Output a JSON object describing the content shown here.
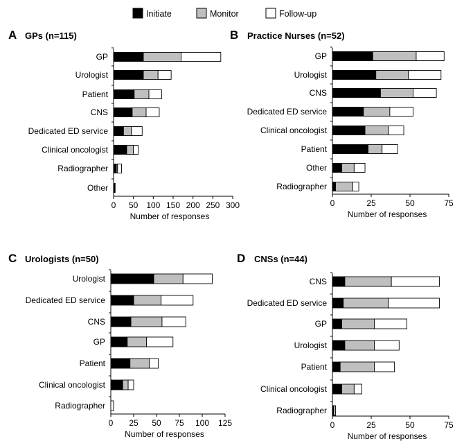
{
  "legend": [
    {
      "name": "Initiate",
      "color": "#000000"
    },
    {
      "name": "Monitor",
      "color": "#bfbfbf"
    },
    {
      "name": "Follow-up",
      "color": "#ffffff"
    }
  ],
  "chart_data": [
    {
      "type": "bar",
      "orientation": "horizontal",
      "stacked": true,
      "panel": "A",
      "title": "GPs (n=115)",
      "xlabel": "Number of responses",
      "xlim": [
        0,
        300
      ],
      "ticks": [
        0,
        50,
        100,
        150,
        200,
        250,
        300
      ],
      "categories": [
        "GP",
        "Urologist",
        "Patient",
        "CNS",
        "Dedicated ED service",
        "Clinical oncologist",
        "Radiographer",
        "Other"
      ],
      "series": [
        {
          "name": "Initiate",
          "values": [
            75,
            75,
            52,
            47,
            25,
            33,
            7,
            2
          ]
        },
        {
          "name": "Monitor",
          "values": [
            95,
            37,
            37,
            35,
            20,
            17,
            3,
            1
          ]
        },
        {
          "name": "Follow-up",
          "values": [
            100,
            33,
            32,
            33,
            27,
            12,
            10,
            1
          ]
        }
      ]
    },
    {
      "type": "bar",
      "orientation": "horizontal",
      "stacked": true,
      "panel": "B",
      "title": "Practice Nurses (n=52)",
      "xlabel": "Number of responses",
      "xlim": [
        0,
        75
      ],
      "ticks": [
        0,
        25,
        50,
        75
      ],
      "categories": [
        "GP",
        "Urologist",
        "CNS",
        "Dedicated ED service",
        "Clinical oncologist",
        "Patient",
        "Other",
        "Radiographer"
      ],
      "series": [
        {
          "name": "Initiate",
          "values": [
            26,
            28,
            31,
            20,
            21,
            23,
            6,
            2
          ]
        },
        {
          "name": "Monitor",
          "values": [
            28,
            21,
            21,
            17,
            15,
            9,
            8,
            11
          ]
        },
        {
          "name": "Follow-up",
          "values": [
            18,
            21,
            15,
            15,
            10,
            10,
            7,
            4
          ]
        }
      ]
    },
    {
      "type": "bar",
      "orientation": "horizontal",
      "stacked": true,
      "panel": "C",
      "title": "Urologists  (n=50)",
      "xlabel": "Number of responses",
      "xlim": [
        0,
        125
      ],
      "ticks": [
        0,
        25,
        50,
        75,
        100,
        125
      ],
      "categories": [
        "Urologist",
        "Dedicated ED service",
        "CNS",
        "GP",
        "Patient",
        "Clinical oncologist",
        "Radiographer"
      ],
      "series": [
        {
          "name": "Initiate",
          "values": [
            47,
            25,
            22,
            18,
            21,
            13,
            0
          ]
        },
        {
          "name": "Monitor",
          "values": [
            32,
            30,
            34,
            21,
            21,
            6,
            0
          ]
        },
        {
          "name": "Follow-up",
          "values": [
            32,
            35,
            26,
            29,
            10,
            6,
            3
          ]
        }
      ]
    },
    {
      "type": "bar",
      "orientation": "horizontal",
      "stacked": true,
      "panel": "D",
      "title": "CNSs (n=44)",
      "xlabel": "Number of responses",
      "xlim": [
        0,
        75
      ],
      "ticks": [
        0,
        25,
        50,
        75
      ],
      "categories": [
        "CNS",
        "Dedicated ED service",
        "GP",
        "Urologist",
        "Patient",
        "Clinical oncologist",
        "Radiographer"
      ],
      "series": [
        {
          "name": "Initiate",
          "values": [
            8,
            7,
            6,
            8,
            5,
            6,
            1
          ]
        },
        {
          "name": "Monitor",
          "values": [
            30,
            29,
            21,
            19,
            22,
            8,
            0
          ]
        },
        {
          "name": "Follow-up",
          "values": [
            31,
            33,
            21,
            16,
            13,
            5,
            1
          ]
        }
      ]
    }
  ]
}
